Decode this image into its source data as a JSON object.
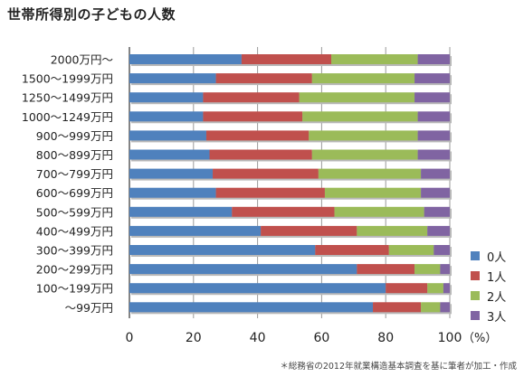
{
  "title": "世帯所得別の子どもの人数",
  "source": "＊総務省の2012年就業構造基本調査を基に筆者が加工・作成",
  "colors": {
    "c0": "#4f81bd",
    "c1": "#c0504d",
    "c2": "#9bbb59",
    "c3": "#8064a2",
    "grid": "#9a9a9a",
    "axis": "#333333"
  },
  "chart_data": {
    "type": "bar",
    "orientation": "horizontal",
    "stacked": true,
    "categories": [
      "2000万円〜",
      "1500〜1999万円",
      "1250〜1499万円",
      "1000〜1249万円",
      "900〜999万円",
      "800〜899万円",
      "700〜799万円",
      "600〜699万円",
      "500〜599万円",
      "400〜499万円",
      "300〜399万円",
      "200〜299万円",
      "100〜199万円",
      "〜99万円"
    ],
    "series": [
      {
        "name": "0人",
        "color": "c0",
        "values": [
          35,
          27,
          23,
          23,
          24,
          25,
          26,
          27,
          32,
          41,
          58,
          71,
          80,
          76
        ]
      },
      {
        "name": "1人",
        "color": "c1",
        "values": [
          28,
          30,
          30,
          31,
          32,
          32,
          33,
          34,
          32,
          30,
          23,
          18,
          13,
          15
        ]
      },
      {
        "name": "2人",
        "color": "c2",
        "values": [
          27,
          32,
          36,
          36,
          34,
          33,
          32,
          30,
          28,
          22,
          14,
          8,
          5,
          6
        ]
      },
      {
        "name": "3人",
        "color": "c3",
        "values": [
          10,
          11,
          11,
          10,
          10,
          10,
          9,
          9,
          8,
          7,
          5,
          3,
          2,
          3
        ]
      }
    ],
    "xlim": [
      0,
      100
    ],
    "xticks": [
      "0",
      "20",
      "40",
      "60",
      "80",
      "100"
    ],
    "xunit": "（%）",
    "grid": true,
    "legend_position": "right"
  }
}
